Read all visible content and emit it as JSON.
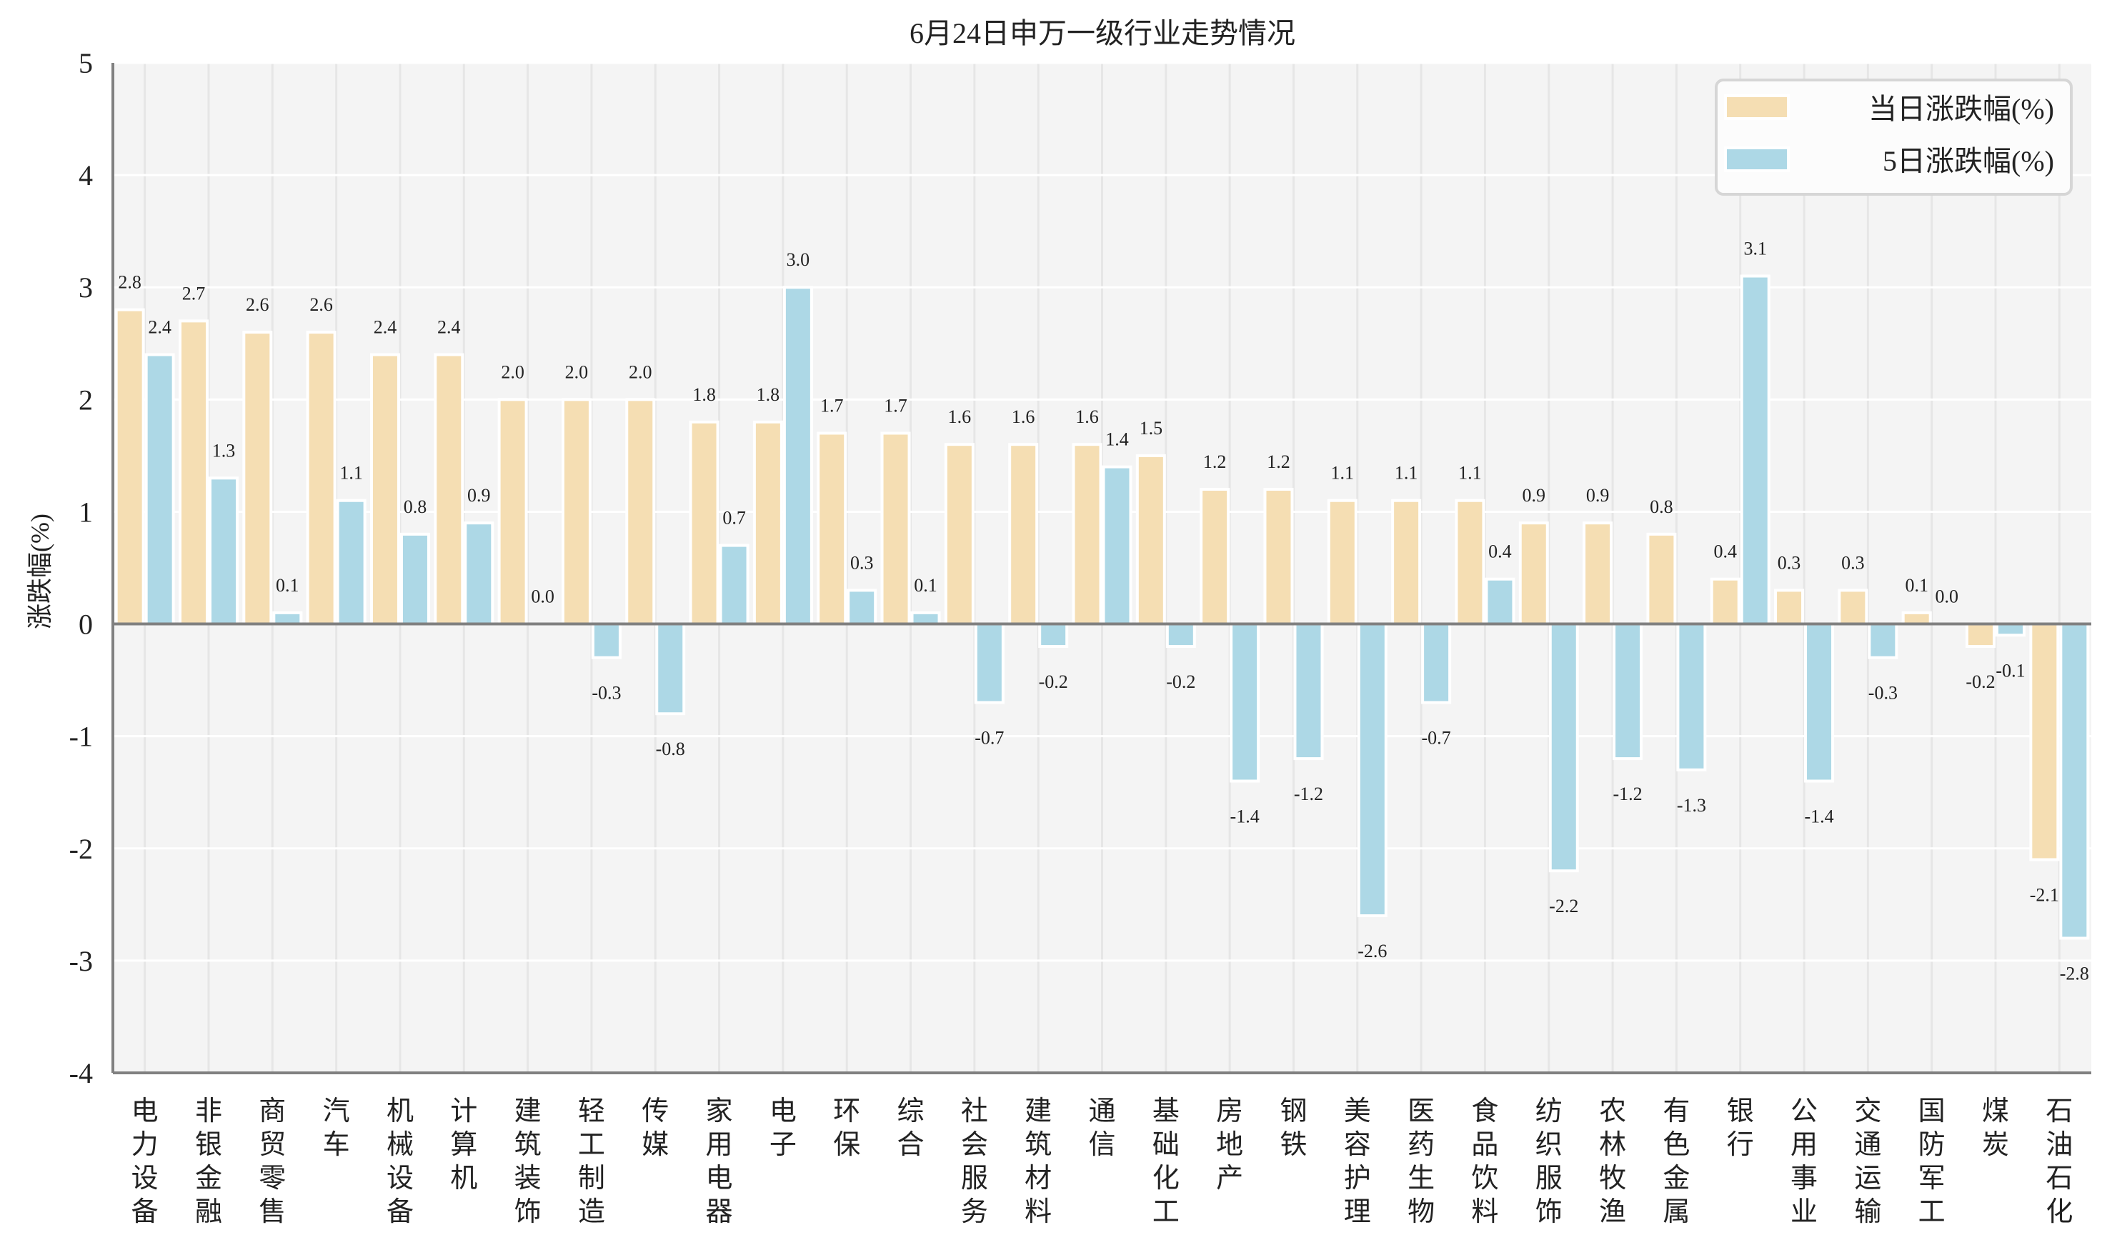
{
  "chart_data": {
    "type": "bar",
    "title": "6月24日申万一级行业走势情况",
    "xlabel": "",
    "ylabel": "涨跌幅(%)",
    "ylim": [
      -4,
      5
    ],
    "yticks": [
      5,
      4,
      3,
      2,
      1,
      0,
      -1,
      -2,
      -3,
      -4
    ],
    "grid": true,
    "legend_position": "top-right",
    "categories": [
      "电力设备",
      "非银金融",
      "商贸零售",
      "汽车",
      "机械设备",
      "计算机",
      "建筑装饰",
      "轻工制造",
      "传媒",
      "家用电器",
      "电子",
      "环保",
      "综合",
      "社会服务",
      "建筑材料",
      "通信",
      "基础化工",
      "房地产",
      "钢铁",
      "美容护理",
      "医药生物",
      "食品饮料",
      "纺织服饰",
      "农林牧渔",
      "有色金属",
      "银行",
      "公用事业",
      "交通运输",
      "国防军工",
      "煤炭",
      "石油石化"
    ],
    "series": [
      {
        "name": "当日涨跌幅(%)",
        "color": "#f5deb3",
        "values": [
          2.8,
          2.7,
          2.6,
          2.6,
          2.4,
          2.4,
          2.0,
          2.0,
          2.0,
          1.8,
          1.8,
          1.7,
          1.7,
          1.6,
          1.6,
          1.6,
          1.5,
          1.2,
          1.2,
          1.1,
          1.1,
          1.1,
          0.9,
          0.9,
          0.8,
          0.4,
          0.3,
          0.3,
          0.1,
          -0.2,
          -2.1
        ]
      },
      {
        "name": "5日涨跌幅(%)",
        "color": "#add8e6",
        "values": [
          2.4,
          1.3,
          0.1,
          1.1,
          0.8,
          0.9,
          0.0,
          -0.3,
          -0.8,
          0.7,
          3.0,
          0.3,
          0.1,
          -0.7,
          -0.2,
          1.4,
          -0.2,
          -1.4,
          -1.2,
          -2.6,
          -0.7,
          0.4,
          -2.2,
          -1.2,
          -1.3,
          3.1,
          -1.4,
          -0.3,
          0.0,
          -0.1,
          -2.8
        ]
      }
    ]
  }
}
